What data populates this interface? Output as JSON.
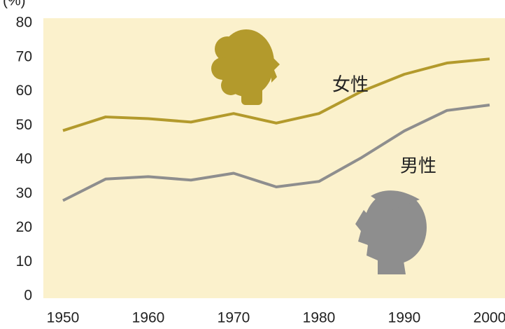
{
  "chart_data": {
    "type": "line",
    "y_label": "(%)",
    "x": [
      1950,
      1955,
      1960,
      1965,
      1970,
      1975,
      1980,
      1985,
      1990,
      1995,
      2000
    ],
    "series": [
      {
        "name": "女性",
        "color": "#b39a2c",
        "values": [
          48.5,
          52.5,
          52,
          51,
          53.5,
          50.7,
          53.5,
          60,
          65,
          68.3,
          69.5
        ]
      },
      {
        "name": "男性",
        "color": "#8e8e8e",
        "values": [
          28,
          34.3,
          35,
          34,
          36,
          32,
          33.6,
          40.6,
          48.4,
          54.4,
          56
        ]
      }
    ],
    "xlim": [
      1950,
      2000
    ],
    "xticks": [
      1950,
      1960,
      1970,
      1980,
      1990,
      2000
    ],
    "ylim": [
      0,
      80
    ],
    "yticks": [
      0,
      10,
      20,
      30,
      40,
      50,
      60,
      70,
      80
    ],
    "grid": false
  }
}
